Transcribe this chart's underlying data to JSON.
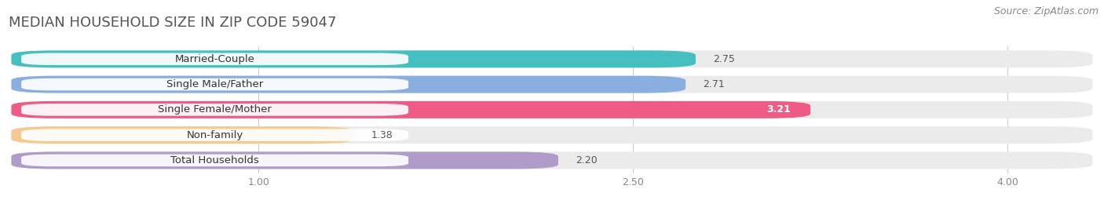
{
  "title": "MEDIAN HOUSEHOLD SIZE IN ZIP CODE 59047",
  "source": "Source: ZipAtlas.com",
  "categories": [
    "Married-Couple",
    "Single Male/Father",
    "Single Female/Mother",
    "Non-family",
    "Total Households"
  ],
  "values": [
    2.75,
    2.71,
    3.21,
    1.38,
    2.2
  ],
  "bar_colors": [
    "#45BFBF",
    "#8AAEE0",
    "#EE5C85",
    "#F5C990",
    "#B09CC8"
  ],
  "xlim_min": 0.0,
  "xlim_max": 4.35,
  "data_min": 0.0,
  "data_max": 4.35,
  "xticks": [
    1.0,
    2.5,
    4.0
  ],
  "xtick_labels": [
    "1.00",
    "2.50",
    "4.00"
  ],
  "background_color": "#ffffff",
  "bar_bg_color": "#ebebeb",
  "title_fontsize": 13,
  "label_fontsize": 9.5,
  "value_fontsize": 9,
  "source_fontsize": 9,
  "bar_height": 0.68,
  "bar_gap": 0.12
}
